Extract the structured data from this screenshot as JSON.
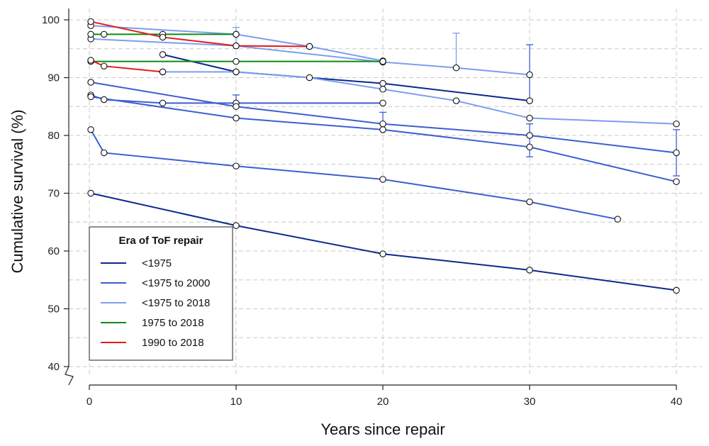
{
  "chart_data": {
    "type": "line",
    "xlabel": "Years since repair",
    "ylabel": "Cumulative survival (%)",
    "xlim": [
      -1,
      41
    ],
    "ylim": [
      39,
      101
    ],
    "x_ticks": [
      0,
      10,
      20,
      30,
      40
    ],
    "y_ticks": [
      40,
      50,
      60,
      70,
      80,
      90,
      100
    ],
    "x_gridlines": [
      0,
      10,
      20,
      30,
      40
    ],
    "y_gridlines": [
      40,
      45,
      50,
      55,
      60,
      65,
      70,
      75,
      80,
      85,
      90,
      95,
      100
    ],
    "grid": true,
    "y_axis_break": true,
    "legend": {
      "title": "Era of ToF repair",
      "position": "bottom-left",
      "entries": [
        {
          "label": "<1975",
          "color": "#0a2a8c"
        },
        {
          "label": "<1975 to 2000",
          "color": "#3d5fcf"
        },
        {
          "label": "<1975 to 2018",
          "color": "#7c9ef0"
        },
        {
          "label": "1975 to 2018",
          "color": "#0f8a15"
        },
        {
          "label": "1990 to 2018",
          "color": "#e31a1c"
        }
      ]
    },
    "series": [
      {
        "era": 0,
        "points": [
          [
            0.1,
            70.0
          ],
          [
            10,
            64.4
          ],
          [
            20,
            59.5
          ],
          [
            30,
            56.7
          ],
          [
            40,
            53.2
          ]
        ]
      },
      {
        "era": 0,
        "points": [
          [
            5,
            94.0
          ],
          [
            10,
            91.0
          ],
          [
            20,
            89.0
          ],
          [
            30,
            86.0
          ]
        ]
      },
      {
        "era": 1,
        "points": [
          [
            0.1,
            81.0
          ],
          [
            1,
            77.0
          ],
          [
            10,
            74.7
          ],
          [
            20,
            72.4
          ],
          [
            30,
            68.5
          ],
          [
            36,
            65.5
          ]
        ]
      },
      {
        "era": 1,
        "points": [
          [
            0.1,
            87.0
          ],
          [
            1,
            86.2
          ],
          [
            5,
            85.6
          ],
          [
            10,
            85.6
          ],
          [
            20,
            85.6
          ]
        ]
      },
      {
        "era": 1,
        "points": [
          [
            0.1,
            89.2
          ],
          [
            10,
            85.0
          ],
          [
            20,
            82.0
          ],
          [
            30,
            80.0
          ],
          [
            40,
            77.0
          ]
        ]
      },
      {
        "era": 1,
        "points": [
          [
            0.1,
            86.7
          ],
          [
            10,
            83.0
          ],
          [
            20,
            81.0
          ],
          [
            30,
            78.0
          ],
          [
            40,
            72.0
          ]
        ]
      },
      {
        "era": 2,
        "points": [
          [
            0.1,
            96.7
          ],
          [
            10,
            95.5
          ],
          [
            20,
            92.7
          ],
          [
            25,
            91.7
          ],
          [
            30,
            90.5
          ]
        ]
      },
      {
        "era": 2,
        "points": [
          [
            0.1,
            99.0
          ],
          [
            10,
            97.5
          ],
          [
            15,
            95.4
          ],
          [
            20,
            92.9
          ]
        ]
      },
      {
        "era": 2,
        "points": [
          [
            5,
            91.0
          ],
          [
            10,
            91.0
          ],
          [
            15,
            90.0
          ],
          [
            20,
            88.0
          ],
          [
            25,
            86.0
          ],
          [
            30,
            83.0
          ],
          [
            40,
            82.0
          ]
        ]
      },
      {
        "era": 3,
        "points": [
          [
            0.1,
            97.5
          ],
          [
            1,
            97.5
          ],
          [
            5,
            97.5
          ],
          [
            10,
            97.5
          ]
        ]
      },
      {
        "era": 3,
        "points": [
          [
            0.1,
            92.8
          ],
          [
            10,
            92.8
          ],
          [
            20,
            92.8
          ]
        ]
      },
      {
        "era": 4,
        "points": [
          [
            0.1,
            99.7
          ],
          [
            5,
            97.0
          ],
          [
            10,
            95.5
          ],
          [
            15,
            95.4
          ]
        ]
      },
      {
        "era": 4,
        "points": [
          [
            0.1,
            93.0
          ],
          [
            1,
            92.0
          ],
          [
            5,
            91.0
          ]
        ]
      }
    ],
    "error_bars": [
      {
        "era": 2,
        "x": 10,
        "lo": 95.5,
        "hi": 98.7
      },
      {
        "era": 1,
        "x": 10,
        "lo": 85.0,
        "hi": 87.0
      },
      {
        "era": 1,
        "x": 20,
        "lo": 82.0,
        "hi": 84.0
      },
      {
        "era": 2,
        "x": 25,
        "lo": 91.7,
        "hi": 97.7
      },
      {
        "era": 1,
        "x": 30,
        "lo": 86.0,
        "hi": 95.7
      },
      {
        "era": 1,
        "x": 30,
        "lo": 76.3,
        "hi": 82.0
      },
      {
        "era": 1,
        "x": 40,
        "lo": 73.0,
        "hi": 81.0
      }
    ]
  }
}
